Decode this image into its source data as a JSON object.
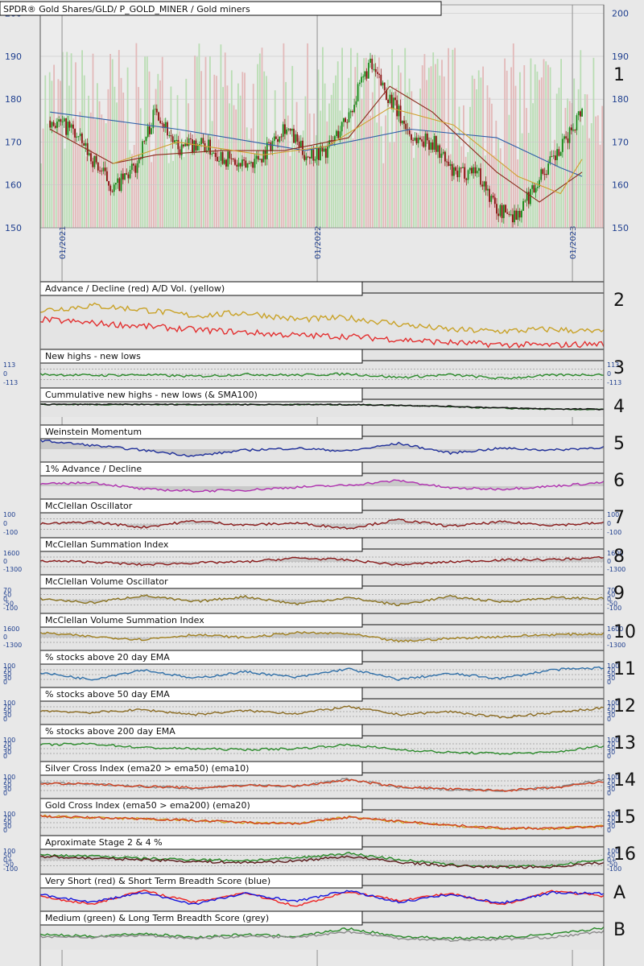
{
  "chart_data": {
    "type": "line",
    "title": "SPDR® Gold Shares/GLD/ P_GOLD_MINER / Gold miners",
    "price_panel": {
      "panel_id": "1",
      "ylim": [
        150,
        202
      ],
      "yticks": [
        150,
        160,
        170,
        180,
        190,
        200
      ],
      "x_tick_labels": [
        "01/2021",
        "01/2022",
        "01/2023"
      ],
      "close": [
        {
          "x": "2020-12",
          "y": 175
        },
        {
          "x": "2021-01",
          "y": 173
        },
        {
          "x": "2021-02",
          "y": 166
        },
        {
          "x": "2021-03",
          "y": 159
        },
        {
          "x": "2021-04",
          "y": 164
        },
        {
          "x": "2021-05",
          "y": 178
        },
        {
          "x": "2021-06",
          "y": 168
        },
        {
          "x": "2021-07",
          "y": 170
        },
        {
          "x": "2021-08",
          "y": 167
        },
        {
          "x": "2021-09",
          "y": 164
        },
        {
          "x": "2021-10",
          "y": 167
        },
        {
          "x": "2021-11",
          "y": 174
        },
        {
          "x": "2021-12",
          "y": 167
        },
        {
          "x": "2022-01",
          "y": 168
        },
        {
          "x": "2022-02",
          "y": 176
        },
        {
          "x": "2022-03",
          "y": 188
        },
        {
          "x": "2022-04",
          "y": 180
        },
        {
          "x": "2022-05",
          "y": 171
        },
        {
          "x": "2022-06",
          "y": 170
        },
        {
          "x": "2022-07",
          "y": 162
        },
        {
          "x": "2022-08",
          "y": 164
        },
        {
          "x": "2022-09",
          "y": 154
        },
        {
          "x": "2022-10",
          "y": 153
        },
        {
          "x": "2022-11",
          "y": 162
        },
        {
          "x": "2022-12",
          "y": 168
        },
        {
          "x": "2023-01",
          "y": 178
        }
      ],
      "sma_red": [
        {
          "x": "2020-12",
          "y": 173
        },
        {
          "x": "2021-03",
          "y": 165
        },
        {
          "x": "2021-05",
          "y": 167
        },
        {
          "x": "2021-08",
          "y": 168
        },
        {
          "x": "2021-11",
          "y": 168
        },
        {
          "x": "2022-02",
          "y": 171
        },
        {
          "x": "2022-04",
          "y": 183
        },
        {
          "x": "2022-06",
          "y": 177
        },
        {
          "x": "2022-09",
          "y": 163
        },
        {
          "x": "2022-11",
          "y": 156
        },
        {
          "x": "2023-01",
          "y": 163
        }
      ],
      "sma_yellow": [
        {
          "x": "2021-03",
          "y": 165
        },
        {
          "x": "2021-06",
          "y": 170
        },
        {
          "x": "2021-10",
          "y": 167
        },
        {
          "x": "2022-01",
          "y": 169
        },
        {
          "x": "2022-04",
          "y": 178
        },
        {
          "x": "2022-07",
          "y": 174
        },
        {
          "x": "2022-10",
          "y": 162
        },
        {
          "x": "2022-12",
          "y": 158
        },
        {
          "x": "2023-01",
          "y": 166
        }
      ],
      "sma_blue": [
        {
          "x": "2020-12",
          "y": 177
        },
        {
          "x": "2021-06",
          "y": 173
        },
        {
          "x": "2021-12",
          "y": 168
        },
        {
          "x": "2022-05",
          "y": 173
        },
        {
          "x": "2022-09",
          "y": 171
        },
        {
          "x": "2022-12",
          "y": 164
        },
        {
          "x": "2023-01",
          "y": 162
        }
      ]
    },
    "indicator_panels": [
      {
        "id": "2",
        "title": "Advance / Decline (red) A/D Vol. (yellow)",
        "yticks": [],
        "series": [
          {
            "color": "#c9a227",
            "values": [
              0.72,
              0.82,
              0.74,
              0.62,
              0.68,
              0.55,
              0.58,
              0.46,
              0.35,
              0.32,
              0.36,
              0.3
            ]
          },
          {
            "color": "#e33030",
            "values": [
              0.55,
              0.48,
              0.42,
              0.35,
              0.3,
              0.24,
              0.22,
              0.16,
              0.1,
              0.06,
              0.05,
              0.08
            ]
          }
        ]
      },
      {
        "id": "3",
        "title": "New highs - new lows",
        "yticks": [
          "113",
          "0",
          "-113"
        ],
        "series": [
          {
            "color": "#2a8a2a",
            "values": [
              0.5,
              0.45,
              0.48,
              0.4,
              0.5,
              0.46,
              0.52,
              0.35,
              0.48,
              0.3,
              0.46,
              0.5
            ]
          }
        ]
      },
      {
        "id": "4",
        "title": "Cummulative new highs - new lows (& SMA100)",
        "yticks": [],
        "series": [
          {
            "color": "#1d5e1d",
            "values": [
              0.8,
              0.8,
              0.8,
              0.79,
              0.79,
              0.79,
              0.78,
              0.7,
              0.55,
              0.4,
              0.3,
              0.28
            ]
          },
          {
            "color": "#111111",
            "values": [
              0.8,
              0.8,
              0.8,
              0.8,
              0.79,
              0.79,
              0.78,
              0.72,
              0.6,
              0.45,
              0.34,
              0.3
            ]
          }
        ]
      },
      {
        "id": "5",
        "title": "Weinstein Momentum",
        "yticks": [],
        "fill": true,
        "series": [
          {
            "color": "#1f2f9a",
            "values": [
              0.95,
              0.7,
              0.45,
              0.15,
              0.45,
              0.55,
              0.4,
              0.8,
              0.3,
              0.55,
              0.45,
              0.6
            ]
          }
        ]
      },
      {
        "id": "6",
        "title": "1% Advance / Decline",
        "yticks": [],
        "fill": true,
        "series": [
          {
            "color": "#b030b0",
            "values": [
              0.6,
              0.7,
              0.35,
              0.25,
              0.3,
              0.45,
              0.55,
              0.8,
              0.4,
              0.35,
              0.5,
              0.7
            ]
          }
        ]
      },
      {
        "id": "7",
        "title": "McClellan Oscillator",
        "yticks": [
          "100",
          "0",
          "-100"
        ],
        "fill": true,
        "series": [
          {
            "color": "#8a1a1a",
            "values": [
              0.5,
              0.6,
              0.35,
              0.65,
              0.45,
              0.55,
              0.3,
              0.7,
              0.4,
              0.6,
              0.45,
              0.55
            ]
          }
        ]
      },
      {
        "id": "8",
        "title": "McClellan Summation Index",
        "yticks": [
          "1600",
          "0",
          "-1300"
        ],
        "fill": true,
        "series": [
          {
            "color": "#8a1a1a",
            "values": [
              0.55,
              0.5,
              0.35,
              0.45,
              0.5,
              0.7,
              0.6,
              0.35,
              0.5,
              0.6,
              0.62,
              0.72
            ]
          }
        ]
      },
      {
        "id": "9",
        "title": "McClellan Volume Oscillator",
        "yticks": [
          "70",
          "50",
          "0",
          "-50",
          "-100"
        ],
        "fill": true,
        "series": [
          {
            "color": "#8a7320",
            "values": [
              0.55,
              0.35,
              0.7,
              0.4,
              0.65,
              0.3,
              0.6,
              0.25,
              0.65,
              0.4,
              0.6,
              0.55
            ]
          }
        ]
      },
      {
        "id": "10",
        "title": "McClellan Volume Summation Index",
        "yticks": [
          "1600",
          "0",
          "-1300"
        ],
        "fill": true,
        "series": [
          {
            "color": "#a08020",
            "values": [
              0.75,
              0.55,
              0.4,
              0.65,
              0.5,
              0.75,
              0.7,
              0.3,
              0.45,
              0.55,
              0.65,
              0.7
            ]
          }
        ]
      },
      {
        "id": "11",
        "title": "% stocks above 20 day EMA",
        "yticks": [
          "100",
          "70",
          "50",
          "30",
          "0"
        ],
        "series": [
          {
            "color": "#2f6fa8",
            "values": [
              0.6,
              0.25,
              0.75,
              0.3,
              0.65,
              0.35,
              0.8,
              0.25,
              0.55,
              0.3,
              0.75,
              0.85
            ]
          }
        ]
      },
      {
        "id": "12",
        "title": "% stocks above 50 day EMA",
        "yticks": [
          "100",
          "70",
          "50",
          "30",
          "0"
        ],
        "series": [
          {
            "color": "#8a6a20",
            "values": [
              0.55,
              0.45,
              0.6,
              0.35,
              0.55,
              0.4,
              0.75,
              0.35,
              0.5,
              0.2,
              0.45,
              0.7
            ]
          }
        ]
      },
      {
        "id": "13",
        "title": "% stocks above 200 day EMA",
        "yticks": [
          "100",
          "70",
          "50",
          "30",
          "0"
        ],
        "series": [
          {
            "color": "#2a8a2a",
            "values": [
              0.7,
              0.75,
              0.55,
              0.5,
              0.45,
              0.5,
              0.7,
              0.45,
              0.3,
              0.25,
              0.3,
              0.65
            ]
          }
        ]
      },
      {
        "id": "14",
        "title": "Silver Cross Index (ema20 > ema50) (ema10)",
        "yticks": [
          "100",
          "70",
          "50",
          "30",
          "0"
        ],
        "series": [
          {
            "color": "#888888",
            "values": [
              0.65,
              0.6,
              0.45,
              0.35,
              0.55,
              0.45,
              0.85,
              0.4,
              0.3,
              0.25,
              0.4,
              0.8
            ]
          },
          {
            "color": "#d04020",
            "values": [
              0.62,
              0.58,
              0.47,
              0.38,
              0.52,
              0.47,
              0.8,
              0.45,
              0.32,
              0.25,
              0.38,
              0.7
            ]
          }
        ]
      },
      {
        "id": "15",
        "title": "Gold Cross Index (ema50 > ema200) (ema20)",
        "yticks": [
          "100",
          "70",
          "50",
          "30",
          "0"
        ],
        "series": [
          {
            "color": "#d0a020",
            "values": [
              0.85,
              0.75,
              0.7,
              0.6,
              0.5,
              0.45,
              0.8,
              0.55,
              0.35,
              0.2,
              0.2,
              0.35
            ]
          },
          {
            "color": "#d04020",
            "values": [
              0.84,
              0.76,
              0.71,
              0.62,
              0.52,
              0.46,
              0.78,
              0.58,
              0.38,
              0.22,
              0.2,
              0.32
            ]
          }
        ]
      },
      {
        "id": "16",
        "title": "Aproximate Stage 2 & 4 %",
        "yticks": [
          "100",
          "50",
          "0+",
          "-50",
          "-100"
        ],
        "fill": true,
        "series": [
          {
            "color": "#2a8a2a",
            "values": [
              0.75,
              0.72,
              0.6,
              0.55,
              0.5,
              0.62,
              0.85,
              0.55,
              0.3,
              0.2,
              0.25,
              0.55
            ]
          },
          {
            "color": "#5a1a1a",
            "values": [
              0.7,
              0.6,
              0.55,
              0.45,
              0.4,
              0.48,
              0.7,
              0.42,
              0.25,
              0.18,
              0.2,
              0.4
            ]
          }
        ]
      },
      {
        "id": "A",
        "title": "Very Short (red) & Short Term Breadth Score (blue)",
        "yticks": [],
        "series": [
          {
            "color": "#ee2020",
            "values": [
              0.6,
              0.2,
              0.9,
              0.3,
              0.8,
              0.1,
              0.85,
              0.4,
              0.75,
              0.15,
              0.9,
              0.6
            ]
          },
          {
            "color": "#1515dd",
            "values": [
              0.7,
              0.3,
              0.8,
              0.2,
              0.75,
              0.35,
              0.9,
              0.3,
              0.7,
              0.25,
              0.8,
              0.75
            ]
          }
        ]
      },
      {
        "id": "B",
        "title": "Medium (green) & Long Term Breadth Score (grey)",
        "yticks": [],
        "series": [
          {
            "color": "#2a8a2a",
            "values": [
              0.55,
              0.45,
              0.6,
              0.4,
              0.55,
              0.45,
              0.85,
              0.45,
              0.35,
              0.4,
              0.55,
              0.9
            ]
          },
          {
            "color": "#8a8a8a",
            "values": [
              0.45,
              0.4,
              0.5,
              0.35,
              0.45,
              0.4,
              0.7,
              0.35,
              0.25,
              0.3,
              0.4,
              0.7
            ]
          }
        ]
      }
    ]
  }
}
